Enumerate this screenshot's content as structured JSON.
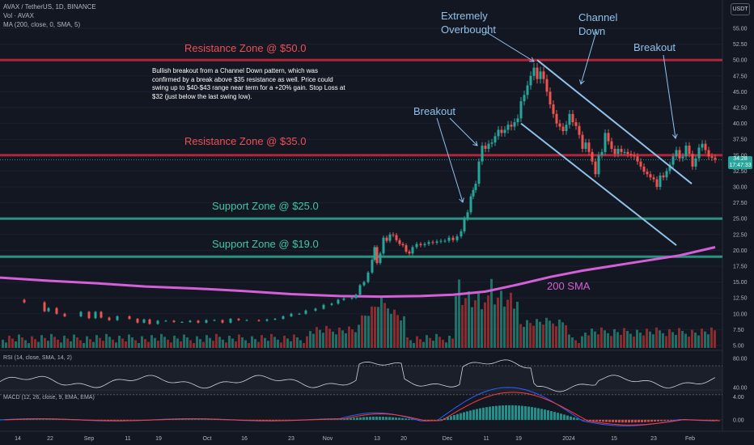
{
  "header": {
    "symbol_line": "AVAX / TetherUS, 1D, BINANCE",
    "volume_line": "Vol · AVAX",
    "ma_line": "MA (200, close, 0, SMA, 5)",
    "currency": "USDT"
  },
  "current_price": {
    "value": "34.28",
    "countdown": "17:47:33"
  },
  "annotations": {
    "extremely_overbought": [
      "Extremely",
      "Overbought"
    ],
    "channel_down": [
      "Channel",
      "Down"
    ],
    "breakout_top": "Breakout",
    "breakout_mid": "Breakout",
    "resistance_50": "Resistance Zone @ $50.0",
    "resistance_35": "Resistance Zone @ $35.0",
    "support_25": "Support Zone @ $25.0",
    "support_19": "Support Zone @ $19.0",
    "sma_label": "200 SMA",
    "note": "Bullish breakout from a Channel Down pattern, which was confirmed by a break above $35 resistance as well. Price could swing up to $40-$43 range near term for a +20% gain. Stop Loss at $32 (just below the last swing low)."
  },
  "colors": {
    "background": "#131722",
    "up": "#26a69a",
    "down": "#ef5350",
    "resistance": "#c2273a",
    "support": "#2f9e8c",
    "sma": "#d55fd6",
    "channel": "#90c2ea",
    "macd": "#2962ff",
    "signal": "#ff3b3b"
  },
  "chart_data": [
    {
      "type": "candlestick",
      "title": "AVAX / TetherUS, 1D, BINANCE",
      "ylim": [
        4.5,
        57
      ],
      "price_ticks": [
        "55.00",
        "52.50",
        "50.00",
        "47.50",
        "45.00",
        "42.50",
        "40.00",
        "37.50",
        "35.00",
        "32.50",
        "30.00",
        "27.50",
        "25.00",
        "22.50",
        "20.00",
        "17.50",
        "15.00",
        "12.50",
        "10.00",
        "7.50",
        "5.00"
      ],
      "x_ticks": [
        "14",
        "22",
        "Sep",
        "11",
        "19",
        "Oct",
        "16",
        "23",
        "Nov",
        "13",
        "20",
        "Dec",
        "11",
        "19",
        "2024",
        "15",
        "23",
        "Feb"
      ],
      "price_path": [
        [
          0,
          12.2
        ],
        [
          30,
          11.8
        ],
        [
          55,
          10.4
        ],
        [
          60,
          10.9
        ],
        [
          70,
          10.0
        ],
        [
          80,
          9.6
        ],
        [
          100,
          10.3
        ],
        [
          110,
          9.3
        ],
        [
          118,
          10.3
        ],
        [
          125,
          9.4
        ],
        [
          135,
          9.0
        ],
        [
          145,
          9.6
        ],
        [
          160,
          9.2
        ],
        [
          170,
          8.6
        ],
        [
          178,
          9.1
        ],
        [
          185,
          8.4
        ],
        [
          195,
          8.9
        ],
        [
          205,
          8.9
        ],
        [
          215,
          8.7
        ],
        [
          225,
          8.7
        ],
        [
          235,
          8.9
        ],
        [
          245,
          8.6
        ],
        [
          255,
          9.0
        ],
        [
          265,
          9.0
        ],
        [
          275,
          8.6
        ],
        [
          285,
          9.2
        ],
        [
          295,
          9.0
        ],
        [
          305,
          9.0
        ],
        [
          320,
          8.9
        ],
        [
          330,
          9.1
        ],
        [
          340,
          9.2
        ],
        [
          350,
          9.6
        ],
        [
          360,
          10.0
        ],
        [
          370,
          10.0
        ],
        [
          378,
          10.5
        ],
        [
          390,
          10.8
        ],
        [
          400,
          11.4
        ],
        [
          410,
          11.6
        ],
        [
          418,
          12.2
        ],
        [
          425,
          12.4
        ],
        [
          435,
          12.5
        ],
        [
          440,
          13.0
        ],
        [
          445,
          14.5
        ],
        [
          450,
          15.0
        ],
        [
          455,
          16.5
        ],
        [
          460,
          18.5
        ],
        [
          463,
          20.5
        ],
        [
          466,
          18.0
        ],
        [
          470,
          19.5
        ],
        [
          474,
          22.0
        ],
        [
          478,
          21.5
        ],
        [
          482,
          22.5
        ],
        [
          486,
          22.4
        ],
        [
          490,
          21.6
        ],
        [
          494,
          21.0
        ],
        [
          498,
          20.8
        ],
        [
          502,
          19.8
        ],
        [
          506,
          19.5
        ],
        [
          510,
          20.5
        ],
        [
          515,
          21.0
        ],
        [
          520,
          20.8
        ],
        [
          525,
          21.0
        ],
        [
          530,
          21.3
        ],
        [
          535,
          21.2
        ],
        [
          540,
          21.4
        ],
        [
          545,
          21.5
        ],
        [
          550,
          21.5
        ],
        [
          555,
          22.0
        ],
        [
          560,
          21.6
        ],
        [
          565,
          22.2
        ],
        [
          570,
          23.0
        ],
        [
          574,
          25.0
        ],
        [
          578,
          26.0
        ],
        [
          582,
          28.5
        ],
        [
          585,
          29.5
        ],
        [
          588,
          30.5
        ],
        [
          592,
          34.0
        ],
        [
          596,
          36.5
        ],
        [
          600,
          36.0
        ],
        [
          604,
          36.8
        ],
        [
          608,
          37.0
        ],
        [
          612,
          38.0
        ],
        [
          616,
          39.0
        ],
        [
          620,
          38.5
        ],
        [
          624,
          39.0
        ],
        [
          628,
          39.8
        ],
        [
          632,
          39.5
        ],
        [
          636,
          40.2
        ],
        [
          640,
          40.8
        ],
        [
          644,
          43.5
        ],
        [
          648,
          44.5
        ],
        [
          652,
          46.0
        ],
        [
          656,
          47.5
        ],
        [
          660,
          48.8
        ],
        [
          664,
          47.0
        ],
        [
          668,
          48.2
        ],
        [
          672,
          47.0
        ],
        [
          676,
          45.0
        ],
        [
          680,
          43.0
        ],
        [
          684,
          41.5
        ],
        [
          688,
          40.0
        ],
        [
          692,
          39.5
        ],
        [
          696,
          38.8
        ],
        [
          700,
          39.8
        ],
        [
          704,
          41.5
        ],
        [
          708,
          40.2
        ],
        [
          712,
          39.6
        ],
        [
          716,
          38.2
        ],
        [
          720,
          36.0
        ],
        [
          724,
          37.0
        ],
        [
          728,
          35.5
        ],
        [
          732,
          34.0
        ],
        [
          736,
          32.0
        ],
        [
          740,
          35.0
        ],
        [
          744,
          35.5
        ],
        [
          748,
          38.5
        ],
        [
          752,
          37.2
        ],
        [
          756,
          36.0
        ],
        [
          760,
          35.2
        ],
        [
          764,
          36.0
        ],
        [
          768,
          35.5
        ],
        [
          772,
          35.5
        ],
        [
          776,
          35.2
        ],
        [
          780,
          35.0
        ],
        [
          784,
          34.8
        ],
        [
          788,
          34.0
        ],
        [
          792,
          33.2
        ],
        [
          796,
          32.4
        ],
        [
          800,
          32.0
        ],
        [
          804,
          31.5
        ],
        [
          808,
          31.2
        ],
        [
          812,
          30.0
        ],
        [
          816,
          31.8
        ],
        [
          820,
          31.5
        ],
        [
          824,
          32.5
        ],
        [
          828,
          33.5
        ],
        [
          832,
          34.8
        ],
        [
          836,
          35.8
        ],
        [
          840,
          34.5
        ],
        [
          844,
          34.8
        ],
        [
          848,
          36.5
        ],
        [
          852,
          35.2
        ],
        [
          856,
          33.2
        ],
        [
          860,
          34.5
        ],
        [
          864,
          36.2
        ],
        [
          868,
          36.8
        ],
        [
          872,
          35.8
        ],
        [
          876,
          34.8
        ],
        [
          880,
          34.6
        ],
        [
          884,
          34.3
        ]
      ],
      "ma200_path": [
        [
          0,
          15.7
        ],
        [
          60,
          15.2
        ],
        [
          120,
          14.8
        ],
        [
          180,
          14.3
        ],
        [
          240,
          14.0
        ],
        [
          300,
          13.6
        ],
        [
          360,
          13.1
        ],
        [
          420,
          12.8
        ],
        [
          470,
          12.7
        ],
        [
          520,
          12.8
        ],
        [
          560,
          13.0
        ],
        [
          600,
          13.5
        ],
        [
          640,
          14.6
        ],
        [
          680,
          15.8
        ],
        [
          720,
          16.8
        ],
        [
          760,
          17.6
        ],
        [
          800,
          18.4
        ],
        [
          840,
          19.2
        ],
        [
          884,
          20.5
        ]
      ],
      "levels": [
        {
          "name": "Resistance Zone @ $50.0",
          "value": 50.0
        },
        {
          "name": "Resistance Zone @ $35.0",
          "value": 35.0
        },
        {
          "name": "Support Zone @ $25.0",
          "value": 25.0
        },
        {
          "name": "Support Zone @ $19.0",
          "value": 19.0
        }
      ],
      "channel": {
        "upper": [
          [
            664,
            50.0
          ],
          [
            855,
            30.5
          ]
        ],
        "lower": [
          [
            644,
            40.0
          ],
          [
            836,
            20.8
          ]
        ]
      },
      "volume_notes": "volume histogram is rendered as decorative bars with relative heights"
    },
    {
      "type": "line",
      "title": "RSI (14, close, SMA, 14, 2)",
      "ylim": [
        32,
        88
      ],
      "ticks": [
        "80.00",
        "40.00"
      ],
      "band": [
        70,
        30
      ]
    },
    {
      "type": "histogram",
      "title": "MACD (12, 26, close, 9, EMA, EMA)",
      "ylim": [
        -2.0,
        6.5
      ],
      "ticks": [
        "4.00",
        "0.00"
      ]
    }
  ]
}
